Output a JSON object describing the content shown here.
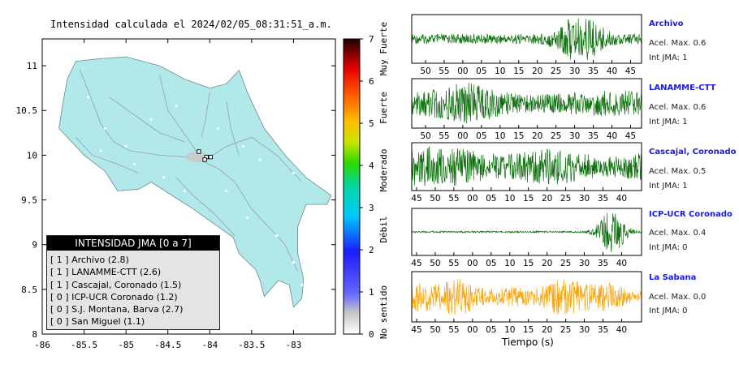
{
  "page_title": "Intensidad calculada el 2024/02/05_08:31:51_a.m.",
  "chart_data": [
    {
      "type": "map",
      "xlim": [
        -86,
        -82.5
      ],
      "ylim": [
        8,
        11.3
      ],
      "x_ticks": [
        "-86",
        "-85.5",
        "-85",
        "-84.5",
        "-84",
        "-83.5",
        "-83"
      ],
      "y_ticks": [
        "8",
        "8.5",
        "9",
        "9.5",
        "10",
        "10.5",
        "11"
      ],
      "land_color": "#b1e8ea"
    },
    {
      "type": "colorbar",
      "ticks": [
        "0",
        "1",
        "2",
        "3",
        "4",
        "5",
        "6",
        "7"
      ],
      "classes": [
        "No sentido",
        "Débil",
        "Moderado",
        "Fuerte",
        "Muy Fuerte"
      ]
    },
    {
      "type": "line",
      "xlabel": "Tiempo (s)",
      "series": [
        {
          "name": "Archivo",
          "accel_max": "Acel. Max. 0.6",
          "int_jma": "Int JMA: 1",
          "color": "#0b6e0b",
          "ticks": [
            "50",
            "55",
            "00",
            "05",
            "10",
            "15",
            "20",
            "25",
            "30",
            "35",
            "40",
            "45"
          ]
        },
        {
          "name": "LANAMME-CTT",
          "accel_max": "Acel. Max. 0.6",
          "int_jma": "Int JMA: 1",
          "color": "#0b6e0b",
          "ticks": [
            "50",
            "55",
            "00",
            "05",
            "10",
            "15",
            "20",
            "25",
            "30",
            "35",
            "40",
            "45"
          ]
        },
        {
          "name": "Cascajal, Coronado",
          "accel_max": "Acel. Max. 0.5",
          "int_jma": "Int JMA: 1",
          "color": "#0b6e0b",
          "ticks": [
            "45",
            "50",
            "55",
            "00",
            "05",
            "10",
            "15",
            "20",
            "25",
            "30",
            "35",
            "40"
          ]
        },
        {
          "name": "ICP-UCR Coronado",
          "accel_max": "Acel. Max. 0.4",
          "int_jma": "Int JMA: 0",
          "color": "#0b6e0b",
          "ticks": [
            "45",
            "50",
            "55",
            "00",
            "05",
            "10",
            "15",
            "20",
            "25",
            "30",
            "35",
            "40"
          ]
        },
        {
          "name": "La Sabana",
          "accel_max": "Acel. Max. 0.0",
          "int_jma": "Int JMA: 0",
          "color": "#f7a50c",
          "ticks": [
            "45",
            "50",
            "55",
            "00",
            "05",
            "10",
            "15",
            "20",
            "25",
            "30",
            "35",
            "40"
          ]
        }
      ]
    }
  ],
  "legend": {
    "title": "INTENSIDAD JMA [0 a 7]",
    "items": [
      "[ 1 ]  Archivo (2.8)",
      "[ 1 ]  LANAMME-CTT (2.6)",
      "[ 1 ]  Cascajal, Coronado (1.5)",
      "[ 0 ]  ICP-UCR Coronado (1.2)",
      "[ 0 ]  S.J. Montana, Barva (2.7)",
      "[ 0 ]  San Miguel (1.1)"
    ]
  }
}
